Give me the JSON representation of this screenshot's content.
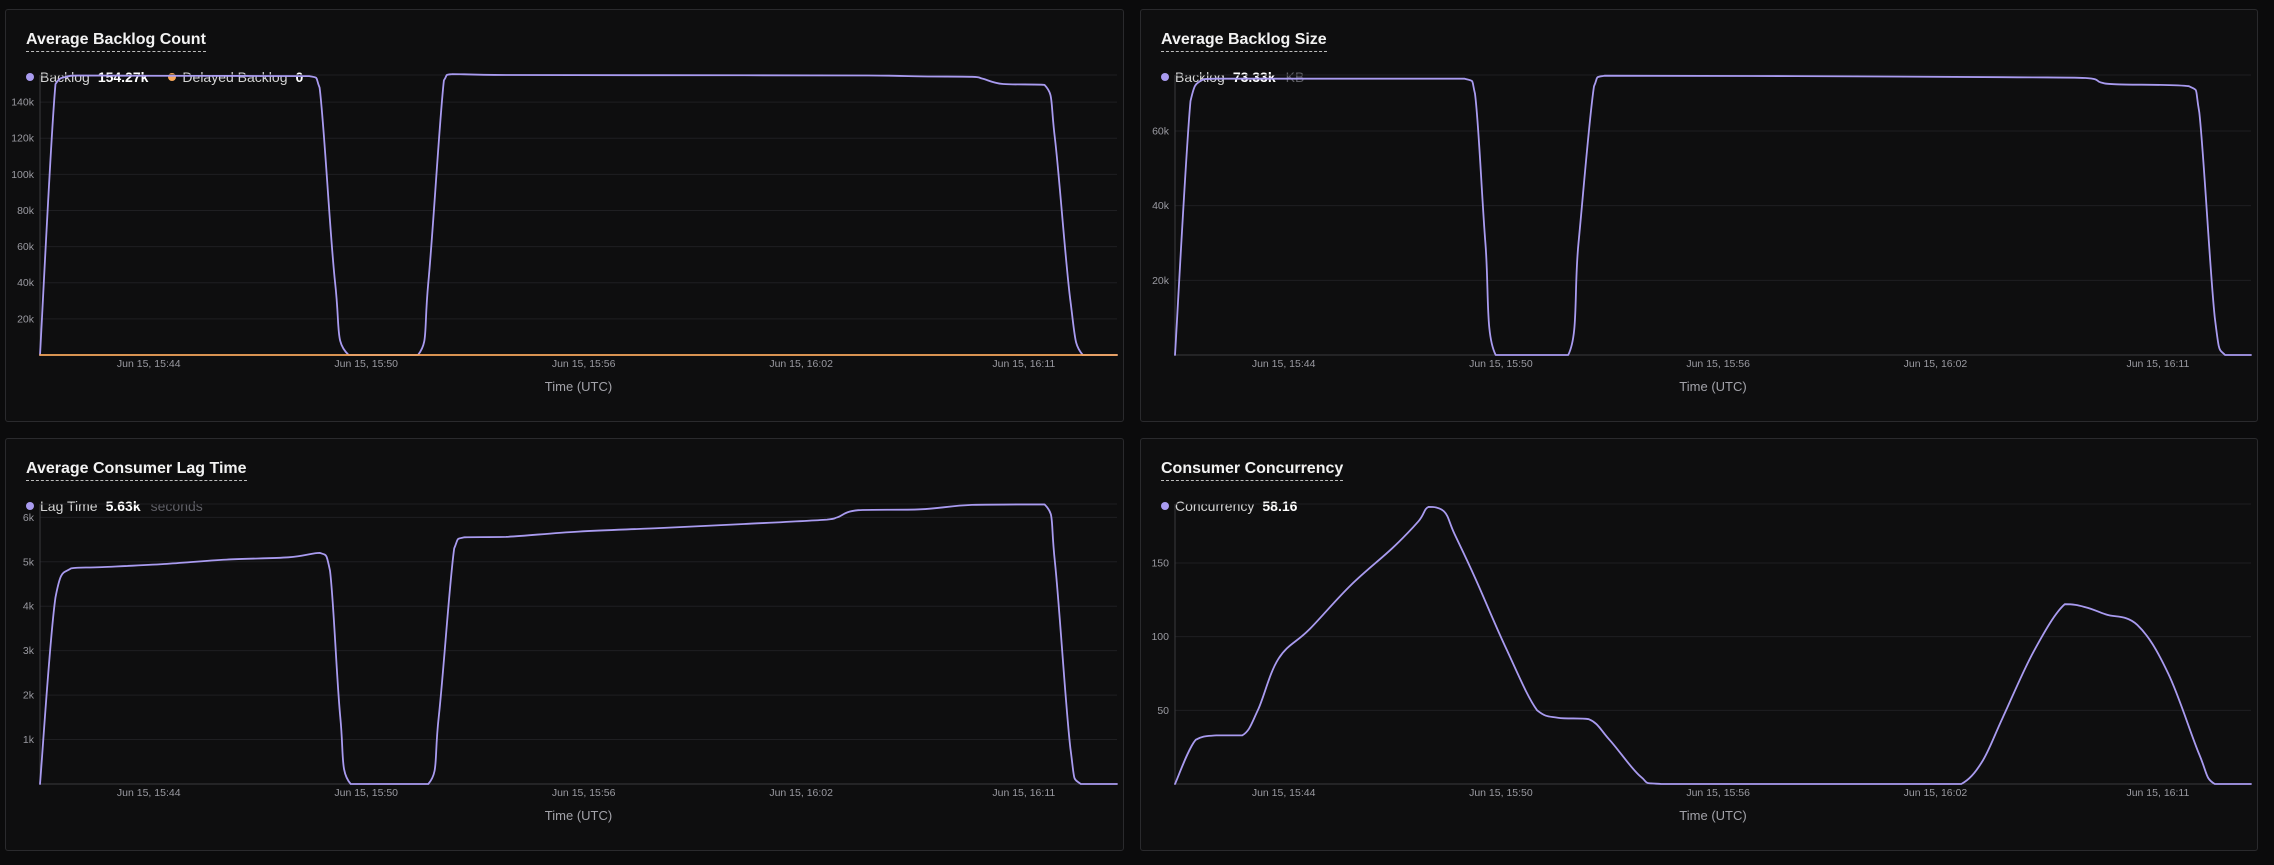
{
  "colors": {
    "series_primary": "#a99bf0",
    "series_secondary": "#f5a65b",
    "grid": "#1f1f22",
    "axis": "#3a3a3e"
  },
  "chart_data": [
    {
      "id": "backlog-count",
      "type": "line",
      "title": "Average Backlog Count",
      "xlabel": "Time (UTC)",
      "ylabel": "",
      "x_ticks": [
        "Jun 15, 15:44",
        "Jun 15, 15:50",
        "Jun 15, 15:56",
        "Jun 15, 16:02",
        "Jun 15, 16:11"
      ],
      "y_ticks": [
        "20k",
        "40k",
        "60k",
        "80k",
        "100k",
        "120k",
        "140k"
      ],
      "y_tick_values": [
        20000,
        40000,
        60000,
        80000,
        100000,
        120000,
        140000
      ],
      "ylim": [
        0,
        155000
      ],
      "legend": [
        {
          "name": "Backlog",
          "value": "154.27k",
          "unit": "",
          "color": "#a99bf0"
        },
        {
          "name": "Delayed Backlog",
          "value": "0",
          "unit": "",
          "color": "#f5a65b"
        }
      ],
      "series": [
        {
          "name": "Backlog",
          "color": "#a99bf0",
          "points": [
            [
              0,
              0
            ],
            [
              1.5,
              150000
            ],
            [
              2.5,
              154000
            ],
            [
              4,
              154700
            ],
            [
              8,
              154600
            ],
            [
              15,
              154500
            ],
            [
              26,
              154400
            ],
            [
              27,
              148000
            ],
            [
              28.5,
              40000
            ],
            [
              29.8,
              0
            ],
            [
              36.5,
              0
            ],
            [
              37.5,
              40000
            ],
            [
              39,
              152000
            ],
            [
              39.8,
              155500
            ],
            [
              45,
              155000
            ],
            [
              60,
              154900
            ],
            [
              80,
              154700
            ],
            [
              85,
              154200
            ],
            [
              90,
              154000
            ],
            [
              91,
              153000
            ],
            [
              93,
              150000
            ],
            [
              97,
              149500
            ],
            [
              98,
              120000
            ],
            [
              99.5,
              30000
            ],
            [
              100.7,
              0
            ],
            [
              104,
              0
            ]
          ]
        },
        {
          "name": "Delayed Backlog",
          "color": "#f5a65b",
          "points": [
            [
              0,
              0
            ],
            [
              104,
              0
            ]
          ]
        }
      ]
    },
    {
      "id": "backlog-size",
      "type": "line",
      "title": "Average Backlog Size",
      "xlabel": "Time (UTC)",
      "ylabel": "",
      "x_ticks": [
        "Jun 15, 15:44",
        "Jun 15, 15:50",
        "Jun 15, 15:56",
        "Jun 15, 16:02",
        "Jun 15, 16:11"
      ],
      "y_ticks": [
        "20k",
        "40k",
        "60k"
      ],
      "y_tick_values": [
        20000,
        40000,
        60000
      ],
      "ylim": [
        0,
        75000
      ],
      "legend": [
        {
          "name": "Backlog",
          "value": "73.33k",
          "unit": "KB",
          "color": "#a99bf0"
        }
      ],
      "series": [
        {
          "name": "Backlog",
          "color": "#a99bf0",
          "points": [
            [
              0,
              0
            ],
            [
              1.5,
              68000
            ],
            [
              2.5,
              73500
            ],
            [
              4,
              74000
            ],
            [
              28,
              74000
            ],
            [
              29,
              70000
            ],
            [
              30,
              30000
            ],
            [
              31,
              0
            ],
            [
              38,
              0
            ],
            [
              39,
              30000
            ],
            [
              40.5,
              72000
            ],
            [
              41.5,
              74800
            ],
            [
              60,
              74700
            ],
            [
              80,
              74400
            ],
            [
              88,
              74200
            ],
            [
              89.5,
              73000
            ],
            [
              91,
              72500
            ],
            [
              98,
              72000
            ],
            [
              99,
              65000
            ],
            [
              100.5,
              10000
            ],
            [
              101.5,
              0
            ],
            [
              104,
              0
            ]
          ]
        }
      ]
    },
    {
      "id": "consumer-lag",
      "type": "line",
      "title": "Average Consumer Lag Time",
      "xlabel": "Time (UTC)",
      "ylabel": "",
      "x_ticks": [
        "Jun 15, 15:44",
        "Jun 15, 15:50",
        "Jun 15, 15:56",
        "Jun 15, 16:02",
        "Jun 15, 16:11"
      ],
      "y_ticks": [
        "1k",
        "2k",
        "3k",
        "4k",
        "5k",
        "6k"
      ],
      "y_tick_values": [
        1000,
        2000,
        3000,
        4000,
        5000,
        6000
      ],
      "ylim": [
        0,
        6300
      ],
      "legend": [
        {
          "name": "Lag Time",
          "value": "5.63k",
          "unit": "seconds",
          "color": "#a99bf0"
        }
      ],
      "series": [
        {
          "name": "Lag Time",
          "color": "#a99bf0",
          "points": [
            [
              0,
              0
            ],
            [
              1.5,
              4200
            ],
            [
              3,
              4850
            ],
            [
              6,
              4880
            ],
            [
              12,
              4950
            ],
            [
              18,
              5050
            ],
            [
              24,
              5100
            ],
            [
              27,
              5200
            ],
            [
              28,
              4800
            ],
            [
              29,
              1500
            ],
            [
              30,
              0
            ],
            [
              37.5,
              0
            ],
            [
              38.5,
              1500
            ],
            [
              40,
              5300
            ],
            [
              41,
              5550
            ],
            [
              45,
              5560
            ],
            [
              52,
              5680
            ],
            [
              60,
              5760
            ],
            [
              68,
              5850
            ],
            [
              76,
              5950
            ],
            [
              77,
              6000
            ],
            [
              79,
              6160
            ],
            [
              85,
              6180
            ],
            [
              90,
              6280
            ],
            [
              97,
              6290
            ],
            [
              98,
              5000
            ],
            [
              99.5,
              800
            ],
            [
              100.5,
              0
            ],
            [
              104,
              0
            ]
          ]
        }
      ]
    },
    {
      "id": "consumer-concurrency",
      "type": "line",
      "title": "Consumer Concurrency",
      "xlabel": "Time (UTC)",
      "ylabel": "",
      "x_ticks": [
        "Jun 15, 15:44",
        "Jun 15, 15:50",
        "Jun 15, 15:56",
        "Jun 15, 16:02",
        "Jun 15, 16:11"
      ],
      "y_ticks": [
        "50",
        "100",
        "150"
      ],
      "y_tick_values": [
        50,
        100,
        150
      ],
      "ylim": [
        0,
        190
      ],
      "legend": [
        {
          "name": "Concurrency",
          "value": "58.16",
          "unit": "",
          "color": "#a99bf0"
        }
      ],
      "series": [
        {
          "name": "Concurrency",
          "color": "#a99bf0",
          "points": [
            [
              0,
              0
            ],
            [
              2,
              30
            ],
            [
              4,
              33
            ],
            [
              6.5,
              33
            ],
            [
              8,
              50
            ],
            [
              10,
              85
            ],
            [
              13,
              105
            ],
            [
              17,
              135
            ],
            [
              21,
              160
            ],
            [
              23.5,
              178
            ],
            [
              24.5,
              188
            ],
            [
              26,
              185
            ],
            [
              27,
              170
            ],
            [
              29,
              140
            ],
            [
              32,
              92
            ],
            [
              35,
              50
            ],
            [
              37,
              45
            ],
            [
              40,
              44
            ],
            [
              42,
              30
            ],
            [
              45,
              5
            ],
            [
              47,
              0
            ],
            [
              60,
              0
            ],
            [
              74,
              0
            ],
            [
              76,
              0
            ],
            [
              78,
              15
            ],
            [
              80,
              45
            ],
            [
              83,
              90
            ],
            [
              86,
              122
            ],
            [
              88,
              120
            ],
            [
              90,
              115
            ],
            [
              93,
              108
            ],
            [
              96,
              75
            ],
            [
              99,
              20
            ],
            [
              100.5,
              0
            ],
            [
              104,
              0
            ]
          ]
        }
      ]
    }
  ]
}
